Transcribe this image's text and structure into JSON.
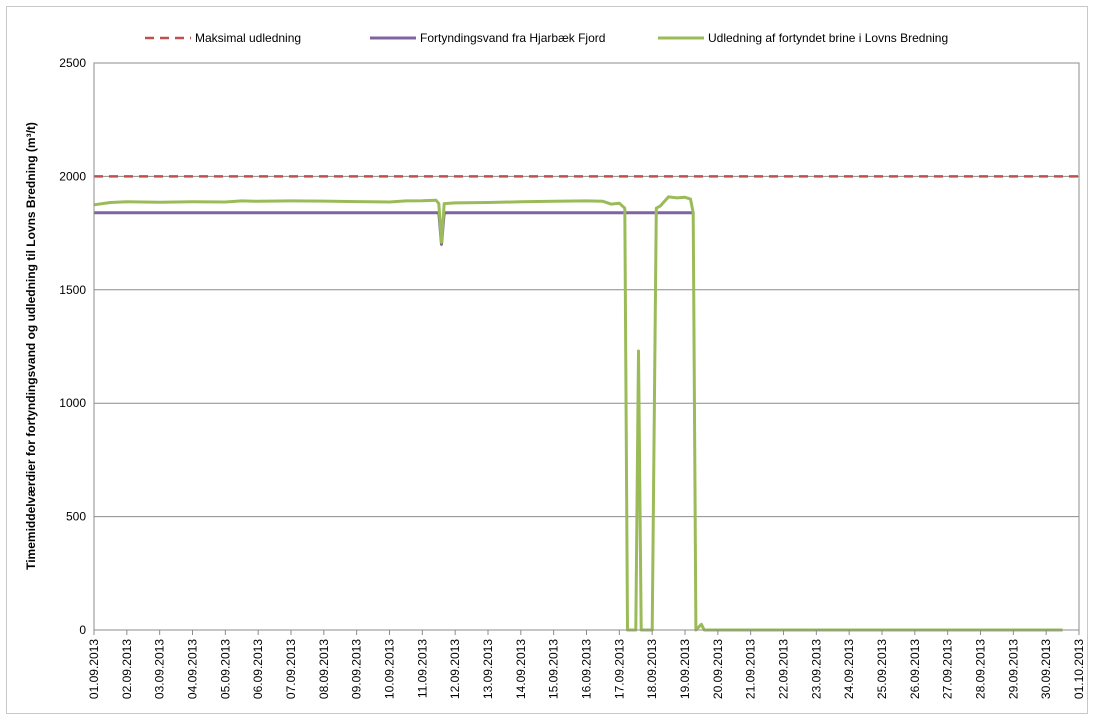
{
  "chart_data": {
    "type": "line",
    "title": "",
    "xlabel": "",
    "ylabel": "Timemiddelværdier for fortyndingsvand og udledning til Lovns Bredning (m³/t)",
    "ylim": [
      0,
      2500
    ],
    "yticks": [
      0,
      500,
      1000,
      1500,
      2000,
      2500
    ],
    "xlim": [
      "01.09.2013",
      "01.10.2013"
    ],
    "x_tick_labels": [
      "01.09.2013",
      "02.09.2013",
      "03.09.2013",
      "04.09.2013",
      "05.09.2013",
      "06.09.2013",
      "07.09.2013",
      "08.09.2013",
      "09.09.2013",
      "10.09.2013",
      "11.09.2013",
      "12.09.2013",
      "13.09.2013",
      "14.09.2013",
      "15.09.2013",
      "16.09.2013",
      "17.09.2013",
      "18.09.2013",
      "19.09.2013",
      "20.09.2013",
      "21.09.2013",
      "22.09.2013",
      "23.09.2013",
      "24.09.2013",
      "25.09.2013",
      "26.09.2013",
      "27.09.2013",
      "28.09.2013",
      "29.09.2013",
      "30.09.2013",
      "01.10.2013"
    ],
    "grid": true,
    "legend_position": "top",
    "series": [
      {
        "name": "Maksimal udledning",
        "color": "#c0504d",
        "style": "dashed",
        "points": [
          [
            "01.09.2013 00:00",
            2000
          ],
          [
            "01.10.2013 00:00",
            2000
          ]
        ]
      },
      {
        "name": "Fortyndingsvand fra Hjarbæk Fjord",
        "color": "#8064a2",
        "style": "solid",
        "points": [
          [
            "01.09.2013 00:00",
            1840
          ],
          [
            "11.09.2013 12:00",
            1840
          ],
          [
            "11.09.2013 14:00",
            1700
          ],
          [
            "11.09.2013 16:00",
            1840
          ],
          [
            "17.09.2013 00:00",
            1840
          ],
          [
            "17.09.2013 06:00",
            1840
          ],
          [
            "18.09.2013 00:00",
            1840
          ],
          [
            "19.09.2013 06:00",
            1840
          ]
        ]
      },
      {
        "name": "Udledning af fortyndet brine i Lovns Bredning",
        "color": "#9bbb59",
        "style": "solid",
        "points": [
          [
            "01.09.2013 00:00",
            1875
          ],
          [
            "01.09.2013 12:00",
            1885
          ],
          [
            "02.09.2013 00:00",
            1888
          ],
          [
            "03.09.2013 00:00",
            1886
          ],
          [
            "04.09.2013 00:00",
            1888
          ],
          [
            "05.09.2013 00:00",
            1887
          ],
          [
            "05.09.2013 12:00",
            1892
          ],
          [
            "06.09.2013 00:00",
            1890
          ],
          [
            "07.09.2013 00:00",
            1892
          ],
          [
            "08.09.2013 00:00",
            1891
          ],
          [
            "09.09.2013 00:00",
            1889
          ],
          [
            "10.09.2013 00:00",
            1887
          ],
          [
            "10.09.2013 12:00",
            1892
          ],
          [
            "11.09.2013 00:00",
            1893
          ],
          [
            "11.09.2013 10:00",
            1895
          ],
          [
            "11.09.2013 12:00",
            1880
          ],
          [
            "11.09.2013 14:00",
            1710
          ],
          [
            "11.09.2013 16:00",
            1880
          ],
          [
            "12.09.2013 00:00",
            1883
          ],
          [
            "13.09.2013 00:00",
            1885
          ],
          [
            "14.09.2013 00:00",
            1888
          ],
          [
            "15.09.2013 00:00",
            1890
          ],
          [
            "16.09.2013 00:00",
            1892
          ],
          [
            "16.09.2013 12:00",
            1890
          ],
          [
            "16.09.2013 18:00",
            1878
          ],
          [
            "17.09.2013 00:00",
            1882
          ],
          [
            "17.09.2013 04:00",
            1860
          ],
          [
            "17.09.2013 06:00",
            0
          ],
          [
            "17.09.2013 12:00",
            0
          ],
          [
            "17.09.2013 14:00",
            1230
          ],
          [
            "17.09.2013 16:00",
            0
          ],
          [
            "18.09.2013 00:00",
            0
          ],
          [
            "18.09.2013 03:00",
            1860
          ],
          [
            "18.09.2013 06:00",
            1870
          ],
          [
            "18.09.2013 12:00",
            1910
          ],
          [
            "18.09.2013 18:00",
            1905
          ],
          [
            "19.09.2013 00:00",
            1908
          ],
          [
            "19.09.2013 04:00",
            1900
          ],
          [
            "19.09.2013 06:00",
            1840
          ],
          [
            "19.09.2013 08:00",
            0
          ],
          [
            "19.09.2013 12:00",
            25
          ],
          [
            "19.09.2013 14:00",
            0
          ],
          [
            "30.09.2013 12:00",
            0
          ]
        ]
      }
    ]
  }
}
